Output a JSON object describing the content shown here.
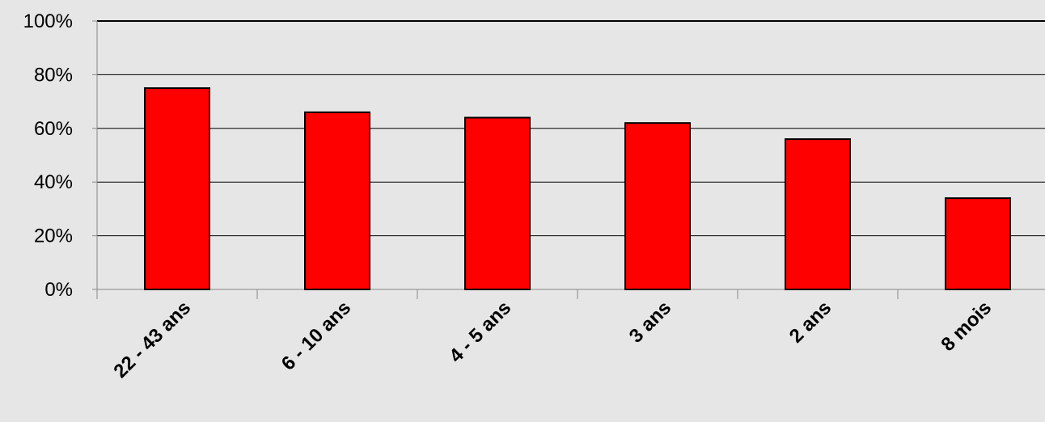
{
  "chart_data": {
    "type": "bar",
    "title": "",
    "xlabel": "",
    "ylabel": "",
    "categories": [
      "22 - 43 ans",
      "6 - 10 ans",
      "4 - 5 ans",
      "3 ans",
      "2 ans",
      "8 mois"
    ],
    "values": [
      75,
      66,
      64,
      62,
      56,
      34
    ],
    "ylim": [
      0,
      100
    ],
    "yticks": [
      0,
      20,
      40,
      60,
      80,
      100
    ],
    "ytick_labels": [
      "0%",
      "20%",
      "40%",
      "60%",
      "80%",
      "100%"
    ],
    "grid": true,
    "legend": false,
    "colors": {
      "bar": "#ff0000",
      "bar_outline": "#000000",
      "grid": "#000000",
      "background": "#e6e6e6"
    }
  }
}
